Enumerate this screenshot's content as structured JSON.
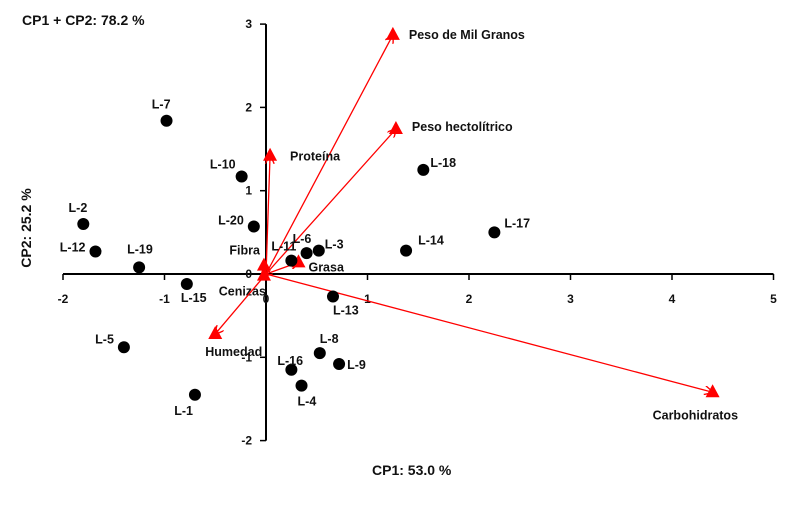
{
  "chart_data": {
    "type": "scatter",
    "title": "CP1 + CP2: 78.2 %",
    "xlabel": "CP1: 53.0 %",
    "ylabel": "CP2: 25.2 %",
    "xlim": [
      -2,
      5
    ],
    "ylim": [
      -2,
      3
    ],
    "x_ticks": [
      -2,
      -1,
      0,
      1,
      2,
      3,
      4,
      5
    ],
    "y_ticks": [
      -2,
      -1,
      0,
      1,
      2,
      3
    ],
    "grid": false,
    "colors": {
      "points": "#000000",
      "vectors": "#ff0000",
      "axis": "#000000"
    },
    "points": [
      {
        "label": "L-1",
        "x": -0.7,
        "y": -1.45
      },
      {
        "label": "L-2",
        "x": -1.8,
        "y": 0.6
      },
      {
        "label": "L-3",
        "x": 0.52,
        "y": 0.28
      },
      {
        "label": "L-4",
        "x": 0.35,
        "y": -1.34
      },
      {
        "label": "L-5",
        "x": -1.4,
        "y": -0.88
      },
      {
        "label": "L-6",
        "x": 0.4,
        "y": 0.25
      },
      {
        "label": "L-8",
        "x": 0.53,
        "y": -0.95
      },
      {
        "label": "L-9",
        "x": 0.72,
        "y": -1.08
      },
      {
        "label": "L-7",
        "x": -0.98,
        "y": 1.84
      },
      {
        "label": "L-10",
        "x": -0.24,
        "y": 1.17
      },
      {
        "label": "L-11",
        "x": 0.25,
        "y": 0.16
      },
      {
        "label": "L-12",
        "x": -1.68,
        "y": 0.27
      },
      {
        "label": "L-13",
        "x": 0.66,
        "y": -0.27
      },
      {
        "label": "L-14",
        "x": 1.38,
        "y": 0.28
      },
      {
        "label": "L-15",
        "x": -0.78,
        "y": -0.12
      },
      {
        "label": "L-16",
        "x": 0.25,
        "y": -1.15
      },
      {
        "label": "L-17",
        "x": 2.25,
        "y": 0.5
      },
      {
        "label": "L-18",
        "x": 1.55,
        "y": 1.25
      },
      {
        "label": "L-19",
        "x": -1.25,
        "y": 0.08
      },
      {
        "label": "L-20",
        "x": -0.12,
        "y": 0.57
      }
    ],
    "vectors": [
      {
        "label": "Peso de Mil Granos",
        "x": 1.25,
        "y": 2.87
      },
      {
        "label": "Peso hectolítrico",
        "x": 1.28,
        "y": 1.74
      },
      {
        "label": "Proteína",
        "x": 0.04,
        "y": 1.42
      },
      {
        "label": "Fibra",
        "x": -0.02,
        "y": 0.1
      },
      {
        "label": "Grasa",
        "x": 0.32,
        "y": 0.14
      },
      {
        "label": "Cenizas",
        "x": -0.02,
        "y": -0.02
      },
      {
        "label": "Humedad",
        "x": -0.5,
        "y": -0.72
      },
      {
        "label": "Carbohidratos",
        "x": 4.4,
        "y": -1.42
      }
    ]
  }
}
